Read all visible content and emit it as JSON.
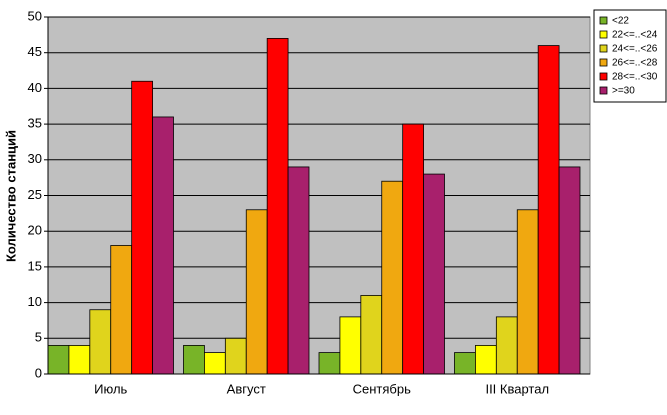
{
  "chart_data": {
    "type": "bar",
    "y_label": "Количество станций",
    "categories": [
      "Июль",
      "Август",
      "Сентябрь",
      "III Квартал"
    ],
    "series": [
      {
        "name": "<22",
        "color": "#78b428",
        "values": [
          4,
          4,
          3,
          3
        ]
      },
      {
        "name": "22<=..<24",
        "color": "#ffff00",
        "values": [
          4,
          3,
          8,
          4
        ]
      },
      {
        "name": "24<=..<26",
        "color": "#e0d41c",
        "values": [
          9,
          5,
          11,
          8
        ]
      },
      {
        "name": "26<=..<28",
        "color": "#f0a810",
        "values": [
          18,
          23,
          27,
          23
        ]
      },
      {
        "name": "28<=..<30",
        "color": "#ff0000",
        "values": [
          41,
          47,
          35,
          46
        ]
      },
      {
        "name": ">=30",
        "color": "#a8206c",
        "values": [
          36,
          29,
          28,
          29
        ]
      }
    ],
    "ylim": [
      0,
      50
    ],
    "yticks": [
      0,
      5,
      10,
      15,
      20,
      25,
      30,
      35,
      40,
      45,
      50
    ],
    "grid": true,
    "legend": "top-right",
    "plot_background": "#c0c0c0"
  }
}
